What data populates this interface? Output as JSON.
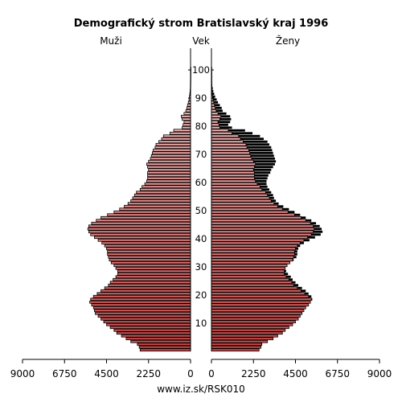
{
  "chart_data": {
    "type": "bar",
    "title": "Demografický strom Bratislavský kraj 1996",
    "left_label": "Muži",
    "center_label": "Vek",
    "right_label": "Ženy",
    "source": "www.iz.sk/RSK010",
    "age_ticks": [
      "10",
      "20",
      "30",
      "40",
      "50",
      "60",
      "70",
      "80",
      "90",
      "100"
    ],
    "x_ticks": [
      "9000",
      "6750",
      "4500",
      "2250",
      "0"
    ],
    "x_ticks_right": [
      "0",
      "2250",
      "4500",
      "6750",
      "9000"
    ],
    "xlim": [
      0,
      9000
    ],
    "age_range": [
      0,
      100
    ],
    "series": [
      {
        "name": "Muži",
        "values": [
          2700,
          2750,
          2850,
          3200,
          3450,
          3700,
          3950,
          4100,
          4300,
          4500,
          4650,
          4800,
          4950,
          5100,
          5150,
          5200,
          5300,
          5400,
          5350,
          5200,
          5000,
          4800,
          4600,
          4400,
          4300,
          4150,
          4000,
          3900,
          3900,
          4000,
          4100,
          4250,
          4350,
          4400,
          4450,
          4450,
          4500,
          4600,
          4750,
          4950,
          5150,
          5350,
          5450,
          5500,
          5450,
          5300,
          5050,
          4800,
          4450,
          4100,
          3800,
          3550,
          3350,
          3200,
          3100,
          3000,
          2900,
          2700,
          2600,
          2450,
          2350,
          2300,
          2300,
          2300,
          2250,
          2300,
          2350,
          2250,
          2150,
          2100,
          2050,
          2000,
          1900,
          1850,
          1700,
          1550,
          1450,
          1100,
          900,
          450,
          400,
          350,
          450,
          500,
          350,
          250,
          200,
          160,
          120,
          80,
          60,
          40,
          25,
          15,
          10,
          8,
          6,
          4,
          3,
          2,
          1
        ]
      },
      {
        "name": "Ženy",
        "values": [
          2550,
          2650,
          2700,
          3000,
          3300,
          3550,
          3800,
          3950,
          4150,
          4350,
          4500,
          4650,
          4750,
          4850,
          4950,
          5050,
          5200,
          5300,
          5400,
          5350,
          5200,
          5050,
          4850,
          4650,
          4500,
          4350,
          4250,
          4100,
          4000,
          3950,
          4050,
          4200,
          4400,
          4550,
          4600,
          4600,
          4650,
          4750,
          4950,
          5250,
          5550,
          5850,
          5950,
          5900,
          5800,
          5600,
          5350,
          5050,
          4750,
          4450,
          4150,
          3850,
          3600,
          3450,
          3350,
          3300,
          3200,
          3100,
          3000,
          2950,
          2950,
          3000,
          3050,
          3150,
          3200,
          3300,
          3400,
          3450,
          3400,
          3350,
          3300,
          3250,
          3200,
          3100,
          3000,
          2800,
          2600,
          2200,
          1800,
          1100,
          900,
          1000,
          1050,
          1000,
          800,
          600,
          550,
          450,
          350,
          280,
          200,
          150,
          100,
          70,
          45,
          30,
          20,
          12,
          8,
          5,
          3
        ]
      }
    ]
  }
}
